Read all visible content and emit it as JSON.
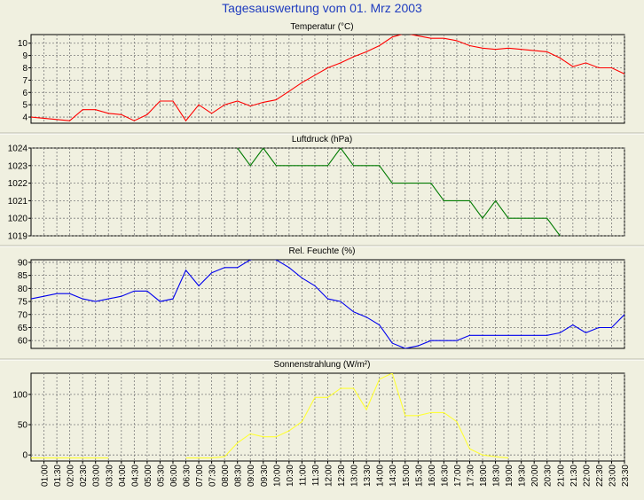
{
  "page": {
    "title": "Tagesauswertung vom 01. Mrz 2003",
    "background": "#f0f0e0",
    "title_color": "#1f3cbf"
  },
  "chart_data": [
    {
      "type": "line",
      "title": "Temperatur (°C)",
      "color": "#ff0000",
      "ylim": [
        3.5,
        10.7
      ],
      "yticks": [
        4,
        5,
        6,
        7,
        8,
        9,
        10
      ],
      "grid": true,
      "x": [
        "00:30",
        "01:00",
        "01:30",
        "02:00",
        "02:30",
        "03:00",
        "03:30",
        "04:00",
        "04:30",
        "05:00",
        "05:30",
        "06:00",
        "06:30",
        "07:00",
        "07:30",
        "08:00",
        "08:30",
        "09:00",
        "09:30",
        "10:00",
        "10:30",
        "11:00",
        "11:30",
        "12:00",
        "12:30",
        "13:00",
        "13:30",
        "14:00",
        "14:30",
        "15:00",
        "15:30",
        "16:00",
        "16:30",
        "17:00",
        "17:30",
        "18:00",
        "18:30",
        "19:00",
        "19:30",
        "20:00",
        "20:30",
        "21:00",
        "21:30",
        "22:00",
        "22:30",
        "23:00",
        "23:30"
      ],
      "values": [
        4.0,
        3.9,
        3.8,
        3.7,
        4.6,
        4.6,
        4.3,
        4.2,
        3.7,
        4.2,
        5.3,
        5.3,
        3.7,
        5.0,
        4.3,
        5.0,
        5.3,
        4.9,
        5.2,
        5.4,
        6.1,
        6.8,
        7.4,
        8.0,
        8.4,
        8.9,
        9.3,
        9.8,
        10.5,
        10.8,
        10.6,
        10.4,
        10.4,
        10.2,
        9.8,
        9.6,
        9.5,
        9.6,
        9.5,
        9.4,
        9.3,
        8.8,
        8.1,
        8.4,
        8.0,
        8.0,
        7.5
      ]
    },
    {
      "type": "line",
      "title": "Luftdruck (hPa)",
      "color": "#007a00",
      "ylim": [
        1019,
        1024
      ],
      "yticks": [
        1019,
        1020,
        1021,
        1022,
        1023,
        1024
      ],
      "grid": true,
      "x": [
        "08:30",
        "09:00",
        "09:30",
        "10:00",
        "10:30",
        "11:00",
        "11:30",
        "12:00",
        "12:30",
        "13:00",
        "13:30",
        "14:00",
        "14:30",
        "15:00",
        "15:30",
        "16:00",
        "16:30",
        "17:00",
        "17:30",
        "18:00",
        "18:30",
        "19:00",
        "19:30",
        "20:00",
        "20:30",
        "21:00"
      ],
      "values": [
        1024,
        1023,
        1024,
        1023,
        1023,
        1023,
        1023,
        1023,
        1024,
        1023,
        1023,
        1023,
        1022,
        1022,
        1022,
        1022,
        1021,
        1021,
        1021,
        1020,
        1021,
        1020,
        1020,
        1020,
        1020,
        1019
      ]
    },
    {
      "type": "line",
      "title": "Rel. Feuchte (%)",
      "color": "#0000ee",
      "ylim": [
        57,
        91
      ],
      "yticks": [
        60,
        65,
        70,
        75,
        80,
        85,
        90
      ],
      "grid": true,
      "x": [
        "00:30",
        "01:00",
        "01:30",
        "02:00",
        "02:30",
        "03:00",
        "03:30",
        "04:00",
        "04:30",
        "05:00",
        "05:30",
        "06:00",
        "06:30",
        "07:00",
        "07:30",
        "08:00",
        "08:30",
        "09:00",
        "09:30",
        "10:00",
        "10:30",
        "11:00",
        "11:30",
        "12:00",
        "12:30",
        "13:00",
        "13:30",
        "14:00",
        "14:30",
        "15:00",
        "15:30",
        "16:00",
        "16:30",
        "17:00",
        "17:30",
        "18:00",
        "18:30",
        "19:00",
        "19:30",
        "20:00",
        "20:30",
        "21:00",
        "21:30",
        "22:00",
        "22:30",
        "23:00",
        "23:30"
      ],
      "values": [
        76,
        77,
        78,
        78,
        76,
        75,
        76,
        77,
        79,
        79,
        75,
        76,
        87,
        81,
        86,
        88,
        88,
        91,
        92,
        91,
        88,
        84,
        81,
        76,
        75,
        71,
        69,
        66,
        59,
        57,
        58,
        60,
        60,
        60,
        62,
        62,
        62,
        62,
        62,
        62,
        62,
        63,
        66,
        63,
        65,
        65,
        70
      ]
    },
    {
      "type": "line",
      "title": "Sonnenstrahlung (W/m²)",
      "color": "#ffff33",
      "ylim": [
        -10,
        135
      ],
      "yticks": [
        0,
        50,
        100
      ],
      "grid": true,
      "x": [
        "00:30",
        "01:00",
        "01:30",
        "02:00",
        "02:30",
        "03:00",
        "03:30",
        "04:00",
        "04:30",
        "05:00",
        "05:30",
        "06:00",
        "06:30",
        "07:00",
        "07:30",
        "08:00",
        "08:30",
        "09:00",
        "09:30",
        "10:00",
        "10:30",
        "11:00",
        "11:30",
        "12:00",
        "12:30",
        "13:00",
        "13:30",
        "14:00",
        "14:30",
        "15:00",
        "15:30",
        "16:00",
        "16:30",
        "17:00",
        "17:30",
        "18:00",
        "18:30",
        "19:00"
      ],
      "values": [
        -5,
        -5,
        -5,
        -5,
        -5,
        -5,
        -5,
        null,
        null,
        null,
        null,
        null,
        -5,
        -5,
        -5,
        -3,
        20,
        35,
        30,
        30,
        40,
        55,
        95,
        95,
        110,
        110,
        75,
        125,
        135,
        65,
        65,
        70,
        70,
        55,
        10,
        0,
        -3,
        -5
      ]
    }
  ],
  "x_axis": {
    "labels": [
      "01:00",
      "01:30",
      "02:00",
      "02:30",
      "03:00",
      "03:30",
      "04:00",
      "04:30",
      "05:00",
      "05:30",
      "06:00",
      "06:30",
      "07:00",
      "07:30",
      "08:00",
      "08:30",
      "09:00",
      "09:30",
      "10:00",
      "10:30",
      "11:00",
      "11:30",
      "12:00",
      "12:30",
      "13:00",
      "13:30",
      "14:00",
      "14:30",
      "15:00",
      "15:30",
      "16:00",
      "16:30",
      "17:00",
      "17:30",
      "18:00",
      "18:30",
      "19:00",
      "19:30",
      "20:00",
      "20:30",
      "21:00",
      "21:30",
      "22:00",
      "22:30",
      "23:00",
      "23:30"
    ]
  }
}
